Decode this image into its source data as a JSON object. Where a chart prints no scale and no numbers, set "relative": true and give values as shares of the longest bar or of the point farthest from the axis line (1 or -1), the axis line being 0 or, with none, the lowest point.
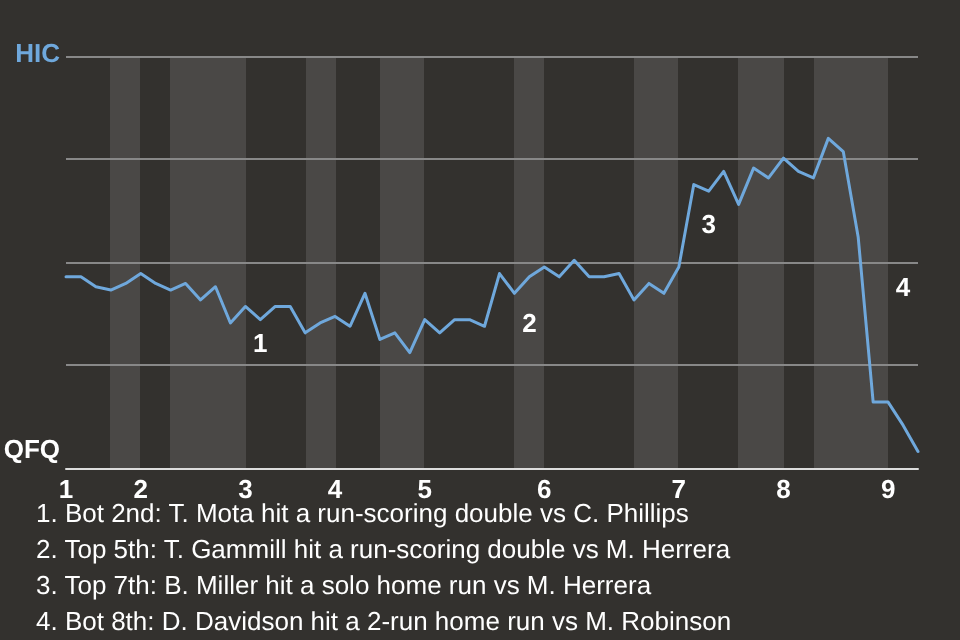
{
  "chart_data": {
    "type": "line",
    "categories": [
      "1",
      null,
      null,
      null,
      null,
      "2",
      null,
      null,
      null,
      null,
      null,
      null,
      "3",
      null,
      null,
      null,
      null,
      null,
      "4",
      null,
      null,
      null,
      null,
      null,
      "5",
      null,
      null,
      null,
      null,
      null,
      null,
      null,
      "6",
      null,
      null,
      null,
      null,
      null,
      null,
      null,
      null,
      "7",
      null,
      null,
      null,
      null,
      null,
      null,
      "8",
      null,
      null,
      null,
      null,
      null,
      null,
      "9",
      null,
      null
    ],
    "series": [
      {
        "color": "#6fa8dc",
        "values": [
          0.58,
          0.58,
          0.55,
          0.54,
          0.56,
          0.59,
          0.56,
          0.54,
          0.56,
          0.51,
          0.55,
          0.44,
          0.49,
          0.45,
          0.49,
          0.49,
          0.41,
          0.44,
          0.46,
          0.43,
          0.53,
          0.39,
          0.41,
          0.35,
          0.45,
          0.41,
          0.45,
          0.45,
          0.43,
          0.59,
          0.53,
          0.58,
          0.61,
          0.58,
          0.63,
          0.58,
          0.58,
          0.59,
          0.51,
          0.56,
          0.53,
          0.61,
          0.86,
          0.84,
          0.9,
          0.8,
          0.91,
          0.88,
          0.94,
          0.9,
          0.88,
          1,
          0.96,
          0.7,
          0.2,
          0.2,
          0.13,
          0.05
        ]
      }
    ],
    "relative": true,
    "grid": "y",
    "marker": "none",
    "annotations": [
      "HIC",
      "QFQ",
      "1",
      "2",
      "3",
      "4",
      "1. Bot 2nd: T. Mota hit a run-scoring double vs C. Phillips",
      "2. Top 5th: T. Gammill hit a run-scoring double vs M. Herrera",
      "3. Top 7th: B. Miller hit a solo home run vs M. Herrera",
      "4. Bot 8th: D. Davidson hit a 2-run home run vs M. Robinson"
    ]
  }
}
